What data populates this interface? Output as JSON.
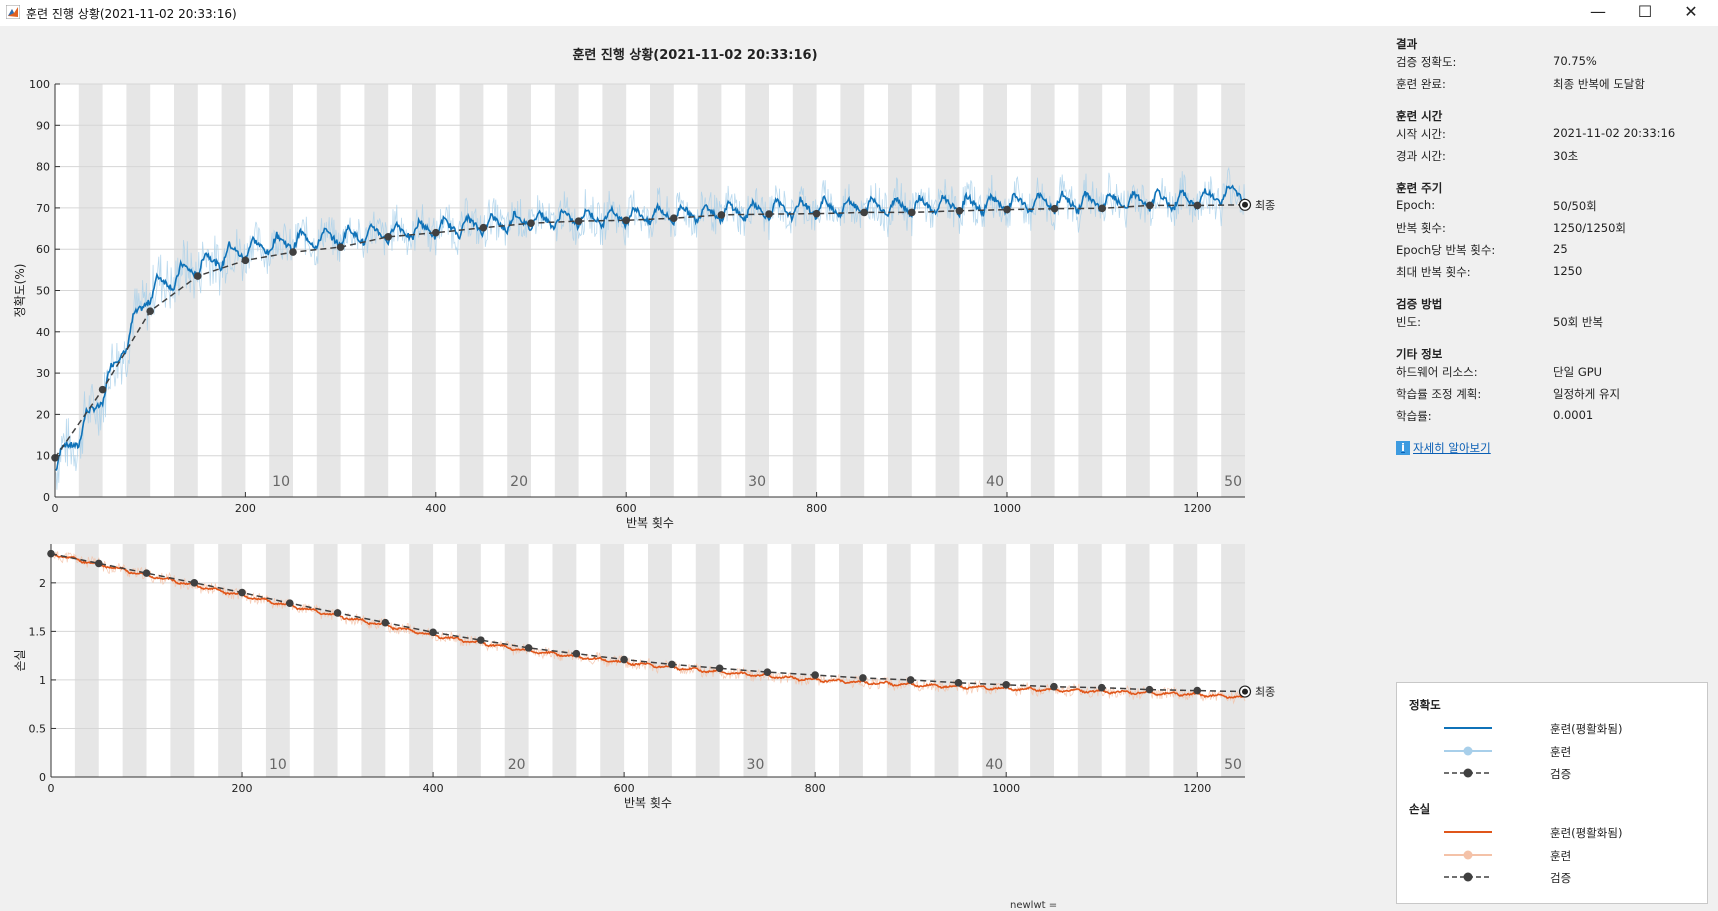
{
  "window": {
    "title": "훈련 진행 상황(2021-11-02 20:33:16)",
    "minimize": "—",
    "maximize": "☐",
    "close": "✕"
  },
  "plot_title": "훈련 진행 상황(2021-11-02 20:33:16)",
  "colors": {
    "accuracy_smoothed": "#0f72b8",
    "accuracy_raw": "#a8cfea",
    "loss_smoothed": "#e0561a",
    "loss_raw": "#f4c2a8",
    "validation": "#404040",
    "epoch_band": "#e6e6e6"
  },
  "final_label": "최종",
  "epoch_labels": [
    "10",
    "20",
    "30",
    "40",
    "50"
  ],
  "chart_data": [
    {
      "type": "line",
      "xlabel": "반복 횟수",
      "ylabel": "정확도(%)",
      "xlim": [
        0,
        1250
      ],
      "ylim": [
        0,
        100
      ],
      "x_ticks": [
        "0",
        "200",
        "400",
        "600",
        "800",
        "1000",
        "1200"
      ],
      "y_ticks": [
        "0",
        "10",
        "20",
        "30",
        "40",
        "50",
        "60",
        "70",
        "80",
        "90",
        "100"
      ],
      "series": [
        {
          "name": "훈련(평활화됨)",
          "role": "smoothed_trend",
          "x": [
            0,
            25,
            50,
            75,
            100,
            150,
            200,
            250,
            300,
            350,
            400,
            500,
            600,
            700,
            800,
            900,
            1000,
            1100,
            1200,
            1250
          ],
          "y": [
            8,
            15,
            25,
            38,
            50,
            56,
            60,
            62,
            63,
            64,
            65,
            67,
            68,
            69,
            70,
            70.5,
            71,
            71.5,
            72,
            74
          ]
        },
        {
          "name": "검증",
          "x": [
            0,
            50,
            100,
            150,
            200,
            250,
            300,
            350,
            400,
            450,
            500,
            550,
            600,
            650,
            700,
            750,
            800,
            850,
            900,
            950,
            1000,
            1050,
            1100,
            1150,
            1200,
            1250
          ],
          "y": [
            9.5,
            26,
            45,
            53.5,
            57.3,
            59.3,
            60.5,
            63,
            64,
            65.2,
            66.3,
            66.8,
            67,
            67.5,
            68.3,
            68.5,
            68.6,
            68.9,
            68.9,
            69.3,
            69.6,
            69.8,
            69.9,
            70.6,
            70.6,
            70.75
          ]
        }
      ]
    },
    {
      "type": "line",
      "xlabel": "반복 횟수",
      "ylabel": "손실",
      "xlim": [
        0,
        1250
      ],
      "ylim": [
        0,
        2.4
      ],
      "x_ticks": [
        "0",
        "200",
        "400",
        "600",
        "800",
        "1000",
        "1200"
      ],
      "y_ticks": [
        "0",
        "0.5",
        "1",
        "1.5",
        "2"
      ],
      "series": [
        {
          "name": "훈련(평활화됨)",
          "role": "smoothed_trend",
          "x": [
            0,
            100,
            200,
            300,
            400,
            500,
            600,
            700,
            800,
            900,
            1000,
            1100,
            1200,
            1250
          ],
          "y": [
            2.3,
            2.08,
            1.87,
            1.66,
            1.46,
            1.3,
            1.18,
            1.08,
            1.0,
            0.95,
            0.91,
            0.88,
            0.85,
            0.82
          ]
        },
        {
          "name": "검증",
          "x": [
            0,
            50,
            100,
            150,
            200,
            250,
            300,
            350,
            400,
            450,
            500,
            550,
            600,
            650,
            700,
            750,
            800,
            850,
            900,
            950,
            1000,
            1050,
            1100,
            1150,
            1200,
            1250
          ],
          "y": [
            2.3,
            2.2,
            2.1,
            2.0,
            1.9,
            1.79,
            1.69,
            1.59,
            1.49,
            1.41,
            1.33,
            1.27,
            1.21,
            1.16,
            1.12,
            1.08,
            1.05,
            1.02,
            1.0,
            0.97,
            0.95,
            0.93,
            0.92,
            0.9,
            0.89,
            0.88
          ]
        }
      ]
    }
  ],
  "info": {
    "sections": [
      {
        "title": "결과",
        "rows": [
          {
            "k": "검증 정확도:",
            "v": "70.75%"
          },
          {
            "k": "훈련 완료:",
            "v": "최종 반복에 도달함"
          }
        ]
      },
      {
        "title": "훈련 시간",
        "rows": [
          {
            "k": "시작 시간:",
            "v": "2021-11-02 20:33:16"
          },
          {
            "k": "경과 시간:",
            "v": "30초"
          }
        ]
      },
      {
        "title": "훈련 주기",
        "rows": [
          {
            "k": "Epoch:",
            "v": "50/50회"
          },
          {
            "k": "반복 횟수:",
            "v": "1250/1250회"
          },
          {
            "k": "Epoch당 반복 횟수:",
            "v": "25"
          },
          {
            "k": "최대 반복 횟수:",
            "v": "1250"
          }
        ]
      },
      {
        "title": "검증 방법",
        "rows": [
          {
            "k": "빈도:",
            "v": "50회 반복"
          }
        ]
      },
      {
        "title": "기타 정보",
        "rows": [
          {
            "k": "하드웨어 리소스:",
            "v": "단일 GPU"
          },
          {
            "k": "학습률 조정 계획:",
            "v": "일정하게 유지"
          },
          {
            "k": "학습률:",
            "v": "0.0001"
          }
        ]
      }
    ],
    "learn_more": "자세히 알아보기"
  },
  "legend": {
    "acc_title": "정확도",
    "loss_title": "손실",
    "smoothed": "훈련(평활화됨)",
    "train": "훈련",
    "validation": "검증"
  },
  "bottom_text": "newlwt ="
}
